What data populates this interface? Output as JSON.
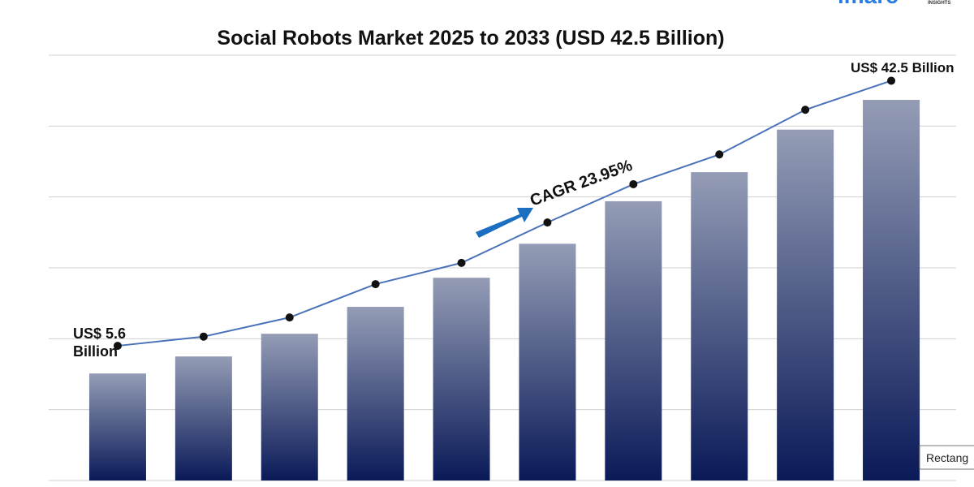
{
  "chart_data": {
    "type": "bar",
    "title": "Social Robots Market 2025 to 2033 (USD 42.5 Billion)",
    "categories": [
      null,
      null,
      null,
      null,
      null,
      null,
      null,
      null,
      null,
      null
    ],
    "series": [
      {
        "type": "bar",
        "values": [
          1.51,
          1.75,
          2.07,
          2.45,
          2.86,
          3.34,
          3.94,
          4.35,
          4.95,
          5.37
        ]
      },
      {
        "type": "line",
        "color": "#4a72b8",
        "values": [
          1.9,
          2.03,
          2.3,
          2.77,
          3.07,
          3.64,
          4.18,
          4.6,
          5.23,
          5.64
        ]
      }
    ],
    "ylim": [
      0,
      6
    ],
    "yticks": [
      0,
      1,
      2,
      3,
      4,
      5,
      6
    ],
    "grid": true,
    "annotations": {
      "start": "US$ 5.6 Billion",
      "end": "US$ 42.5 Billion",
      "cagr": "CAGR 23.95%"
    },
    "logo": "imarc",
    "logo_sub": "INSIGHTS",
    "tooltip": "Rectang"
  }
}
